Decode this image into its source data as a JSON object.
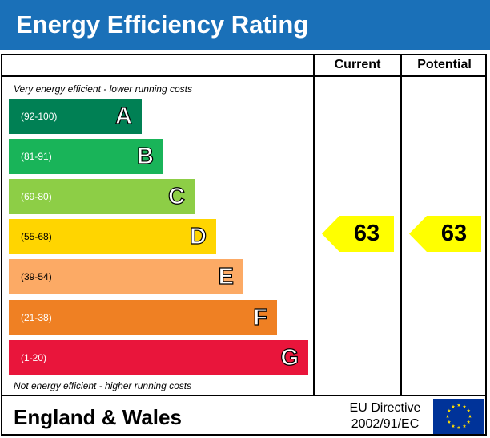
{
  "title": "Energy Efficiency Rating",
  "columns": {
    "current": "Current",
    "potential": "Potential"
  },
  "top_note": "Very energy efficient - lower running costs",
  "bottom_note": "Not energy efficient - higher running costs",
  "bands": [
    {
      "letter": "A",
      "range": "(92-100)",
      "color": "#008054"
    },
    {
      "letter": "B",
      "range": "(81-91)",
      "color": "#19b459"
    },
    {
      "letter": "C",
      "range": "(69-80)",
      "color": "#8dce46"
    },
    {
      "letter": "D",
      "range": "(55-68)",
      "color": "#ffd500"
    },
    {
      "letter": "E",
      "range": "(39-54)",
      "color": "#fcaa65"
    },
    {
      "letter": "F",
      "range": "(21-38)",
      "color": "#ef8023"
    },
    {
      "letter": "G",
      "range": "(1-20)",
      "color": "#e9153b"
    }
  ],
  "ratings": {
    "current": "63",
    "potential": "63",
    "color": "#ffff00"
  },
  "footer": {
    "country": "England & Wales",
    "directive_line1": "EU Directive",
    "directive_line2": "2002/91/EC"
  },
  "colors": {
    "header": "#1a70b8",
    "eu_flag_blue": "#003399",
    "eu_stars": "#ffdd00"
  }
}
